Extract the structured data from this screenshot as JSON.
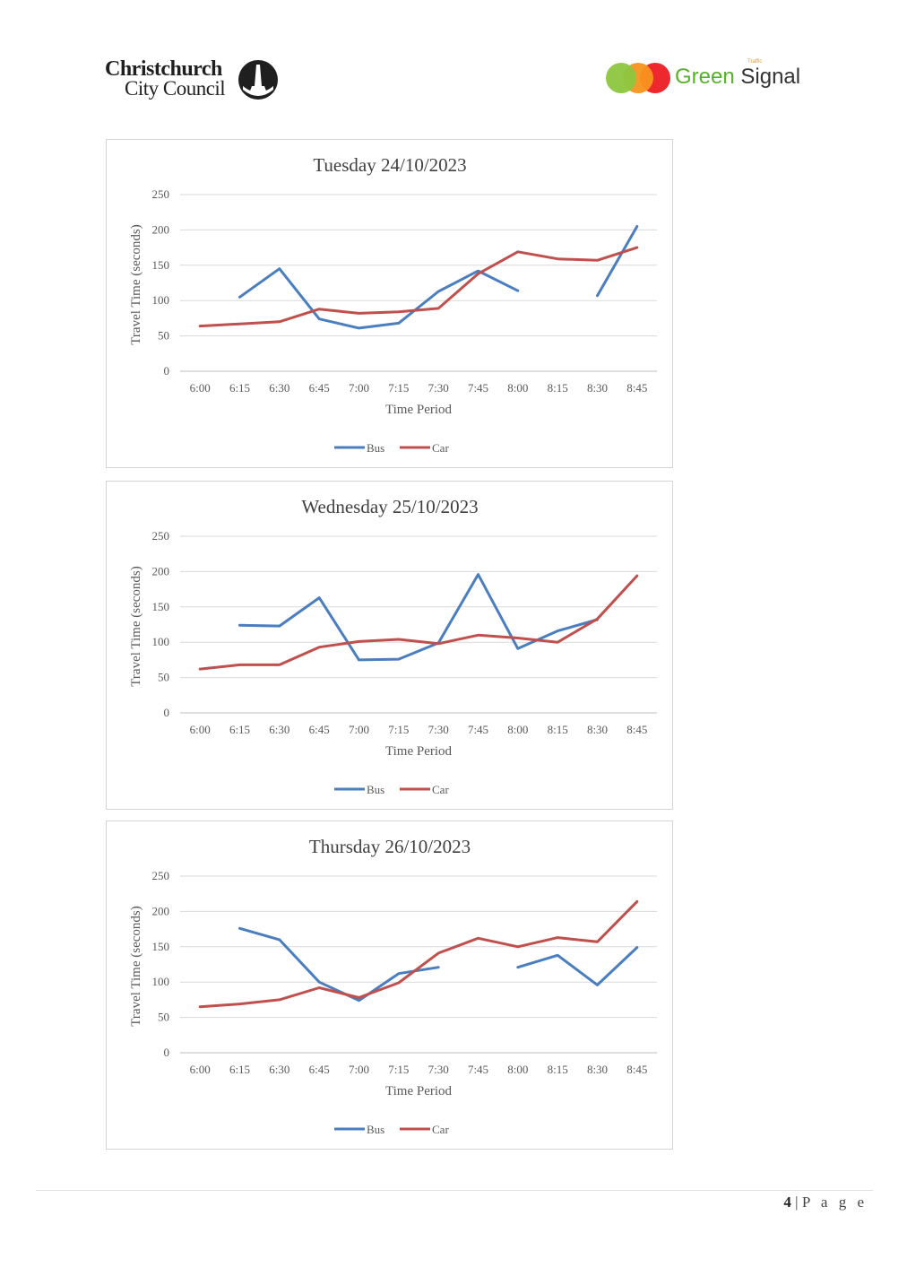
{
  "header": {
    "left_logo": {
      "line1": "Christchurch",
      "line2": "City Council",
      "icon": "cathedral-emblem-icon"
    },
    "right_logo": {
      "word1": "Green",
      "word2": "Signal",
      "small_text": "Traffic",
      "colors": [
        "#8dc63f",
        "#f7941d",
        "#ed1c24"
      ]
    }
  },
  "footer": {
    "page_number": "4",
    "separator": "|",
    "page_word": "P a g e"
  },
  "chart_data": [
    {
      "type": "line",
      "title": "Tuesday 24/10/2023",
      "xlabel": "Time Period",
      "ylabel": "Travel Time (seconds)",
      "categories": [
        "6:00",
        "6:15",
        "6:30",
        "6:45",
        "7:00",
        "7:15",
        "7:30",
        "7:45",
        "8:00",
        "8:15",
        "8:30",
        "8:45"
      ],
      "ylim": [
        0,
        250
      ],
      "yticks": [
        "0",
        "50",
        "100",
        "150",
        "200",
        "250"
      ],
      "grid": true,
      "legend": "bottom",
      "series": [
        {
          "name": "Bus",
          "color": "#4a7ebf",
          "values": [
            null,
            105,
            145,
            74,
            61,
            68,
            113,
            142,
            114,
            null,
            107,
            205
          ]
        },
        {
          "name": "Car",
          "color": "#c0504d",
          "values": [
            64,
            67,
            70,
            88,
            82,
            84,
            89,
            138,
            169,
            159,
            157,
            175
          ]
        }
      ]
    },
    {
      "type": "line",
      "title": "Wednesday 25/10/2023",
      "xlabel": "Time Period",
      "ylabel": "Travel Time (seconds)",
      "categories": [
        "6:00",
        "6:15",
        "6:30",
        "6:45",
        "7:00",
        "7:15",
        "7:30",
        "7:45",
        "8:00",
        "8:15",
        "8:30",
        "8:45"
      ],
      "ylim": [
        0,
        250
      ],
      "yticks": [
        "0",
        "50",
        "100",
        "150",
        "200",
        "250"
      ],
      "grid": true,
      "legend": "bottom",
      "series": [
        {
          "name": "Bus",
          "color": "#4a7ebf",
          "values": [
            null,
            124,
            123,
            163,
            75,
            76,
            99,
            196,
            91,
            116,
            132,
            null
          ]
        },
        {
          "name": "Car",
          "color": "#c0504d",
          "values": [
            62,
            68,
            68,
            93,
            101,
            104,
            98,
            110,
            106,
            100,
            133,
            194
          ]
        }
      ]
    },
    {
      "type": "line",
      "title": "Thursday 26/10/2023",
      "xlabel": "Time Period",
      "ylabel": "Travel Time (seconds)",
      "categories": [
        "6:00",
        "6:15",
        "6:30",
        "6:45",
        "7:00",
        "7:15",
        "7:30",
        "7:45",
        "8:00",
        "8:15",
        "8:30",
        "8:45"
      ],
      "ylim": [
        0,
        250
      ],
      "yticks": [
        "0",
        "50",
        "100",
        "150",
        "200",
        "250"
      ],
      "grid": true,
      "legend": "bottom",
      "series": [
        {
          "name": "Bus",
          "color": "#4a7ebf",
          "values": [
            null,
            176,
            160,
            100,
            74,
            112,
            121,
            null,
            121,
            138,
            96,
            149
          ]
        },
        {
          "name": "Car",
          "color": "#c0504d",
          "values": [
            65,
            69,
            75,
            92,
            78,
            99,
            141,
            162,
            150,
            163,
            157,
            214
          ]
        }
      ]
    }
  ]
}
